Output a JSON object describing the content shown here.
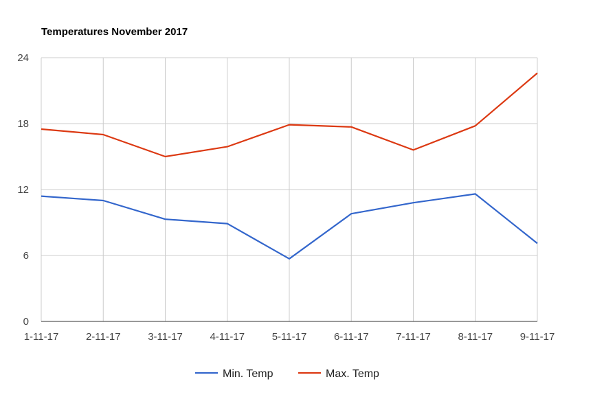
{
  "chart_data": {
    "type": "line",
    "title": "Temperatures November 2017",
    "xlabel": "",
    "ylabel": "",
    "categories": [
      "1-11-17",
      "2-11-17",
      "3-11-17",
      "4-11-17",
      "5-11-17",
      "6-11-17",
      "7-11-17",
      "8-11-17",
      "9-11-17"
    ],
    "ylim": [
      0,
      24
    ],
    "yticks": [
      0,
      6,
      12,
      18,
      24
    ],
    "grid": true,
    "legend_position": "bottom",
    "series": [
      {
        "name": "Min. Temp",
        "color": "#3366cc",
        "values": [
          11.4,
          11.0,
          9.3,
          8.9,
          5.7,
          9.8,
          10.8,
          11.6,
          7.1
        ]
      },
      {
        "name": "Max. Temp",
        "color": "#dc3912",
        "values": [
          17.5,
          17.0,
          15.0,
          15.9,
          17.9,
          17.7,
          15.6,
          17.8,
          22.6
        ]
      }
    ]
  }
}
